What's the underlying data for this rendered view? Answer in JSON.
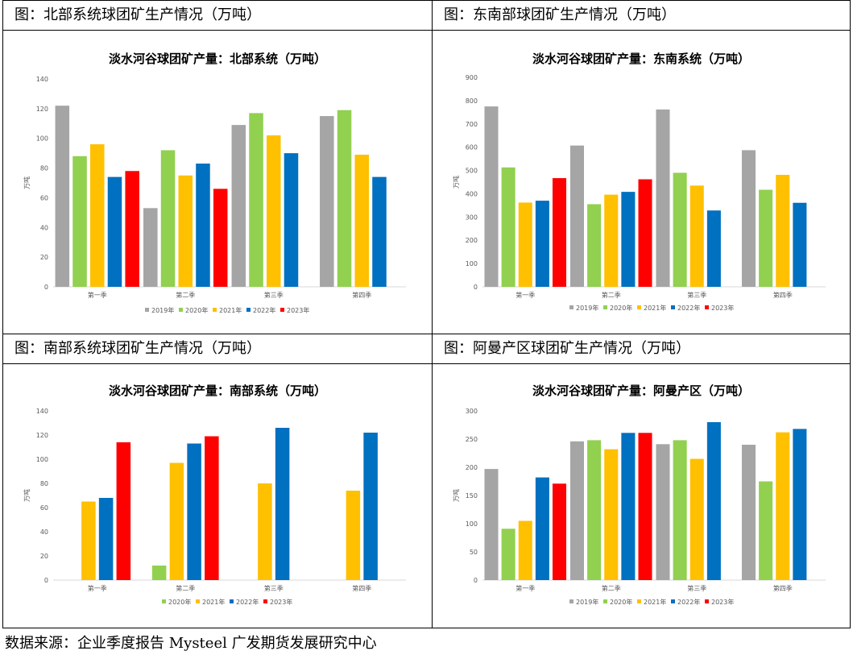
{
  "footer": "数据来源：企业季度报告 Mysteel 广发期货发展研究中心",
  "colors": {
    "2019年": "#a5a5a5",
    "2020年": "#92d050",
    "2021年": "#ffc000",
    "2022年": "#0070c0",
    "2023年": "#ff0000"
  },
  "panels": [
    {
      "caption": "图：北部系统球团矿生产情况（万吨）"
    },
    {
      "caption": "图：东南部球团矿生产情况（万吨）"
    },
    {
      "caption": "图：南部系统球团矿生产情况（万吨）"
    },
    {
      "caption": "图：阿曼产区球团矿生产情况（万吨）"
    }
  ],
  "chart_data": [
    {
      "type": "bar",
      "title": "淡水河谷球团矿产量：北部系统（万吨）",
      "ylabel": "万吨",
      "xlabel": "",
      "ylim": [
        0,
        140
      ],
      "yticks": [
        0,
        20,
        40,
        60,
        80,
        100,
        120,
        140
      ],
      "categories": [
        "第一季",
        "第二季",
        "第三季",
        "第四季"
      ],
      "legend": "bottom",
      "series": [
        {
          "name": "2019年",
          "values": [
            122,
            53,
            109,
            115
          ]
        },
        {
          "name": "2020年",
          "values": [
            88,
            92,
            117,
            119
          ]
        },
        {
          "name": "2021年",
          "values": [
            96,
            75,
            102,
            89
          ]
        },
        {
          "name": "2022年",
          "values": [
            74,
            83,
            90,
            74
          ]
        },
        {
          "name": "2023年",
          "values": [
            78,
            66,
            null,
            null
          ]
        }
      ]
    },
    {
      "type": "bar",
      "title": "淡水河谷球团矿产量：东南系统（万吨）",
      "ylabel": "万吨",
      "xlabel": "",
      "ylim": [
        0,
        900
      ],
      "yticks": [
        0,
        100,
        200,
        300,
        400,
        500,
        600,
        700,
        800,
        900
      ],
      "categories": [
        "第一季",
        "第二季",
        "第三季",
        "第四季"
      ],
      "legend": "bottom",
      "series": [
        {
          "name": "2019年",
          "values": [
            775,
            607,
            762,
            587
          ]
        },
        {
          "name": "2020年",
          "values": [
            513,
            355,
            490,
            417
          ]
        },
        {
          "name": "2021年",
          "values": [
            362,
            396,
            435,
            481
          ]
        },
        {
          "name": "2022年",
          "values": [
            370,
            408,
            328,
            361
          ]
        },
        {
          "name": "2023年",
          "values": [
            467,
            462,
            null,
            null
          ]
        }
      ]
    },
    {
      "type": "bar",
      "title": "淡水河谷球团矿产量：南部系统（万吨）",
      "ylabel": "万吨",
      "xlabel": "",
      "ylim": [
        0,
        140
      ],
      "yticks": [
        0,
        20,
        40,
        60,
        80,
        100,
        120,
        140
      ],
      "categories": [
        "第一季",
        "第二季",
        "第三季",
        "第四季"
      ],
      "legend": "bottom",
      "series": [
        {
          "name": "2020年",
          "values": [
            null,
            12,
            null,
            null
          ]
        },
        {
          "name": "2021年",
          "values": [
            65,
            97,
            80,
            74
          ]
        },
        {
          "name": "2022年",
          "values": [
            68,
            113,
            126,
            122
          ]
        },
        {
          "name": "2023年",
          "values": [
            114,
            119,
            null,
            null
          ]
        }
      ]
    },
    {
      "type": "bar",
      "title": "淡水河谷球团矿产量：阿曼产区（万吨）",
      "ylabel": "万吨",
      "xlabel": "",
      "ylim": [
        0,
        300
      ],
      "yticks": [
        0,
        50,
        100,
        150,
        200,
        250,
        300
      ],
      "categories": [
        "第一季",
        "第二季",
        "第三季",
        "第四季"
      ],
      "legend": "bottom",
      "series": [
        {
          "name": "2019年",
          "values": [
            197,
            246,
            241,
            240
          ]
        },
        {
          "name": "2020年",
          "values": [
            91,
            248,
            248,
            175
          ]
        },
        {
          "name": "2021年",
          "values": [
            105,
            232,
            215,
            262
          ]
        },
        {
          "name": "2022年",
          "values": [
            182,
            261,
            280,
            268
          ]
        },
        {
          "name": "2023年",
          "values": [
            171,
            261,
            null,
            null
          ]
        }
      ]
    }
  ]
}
